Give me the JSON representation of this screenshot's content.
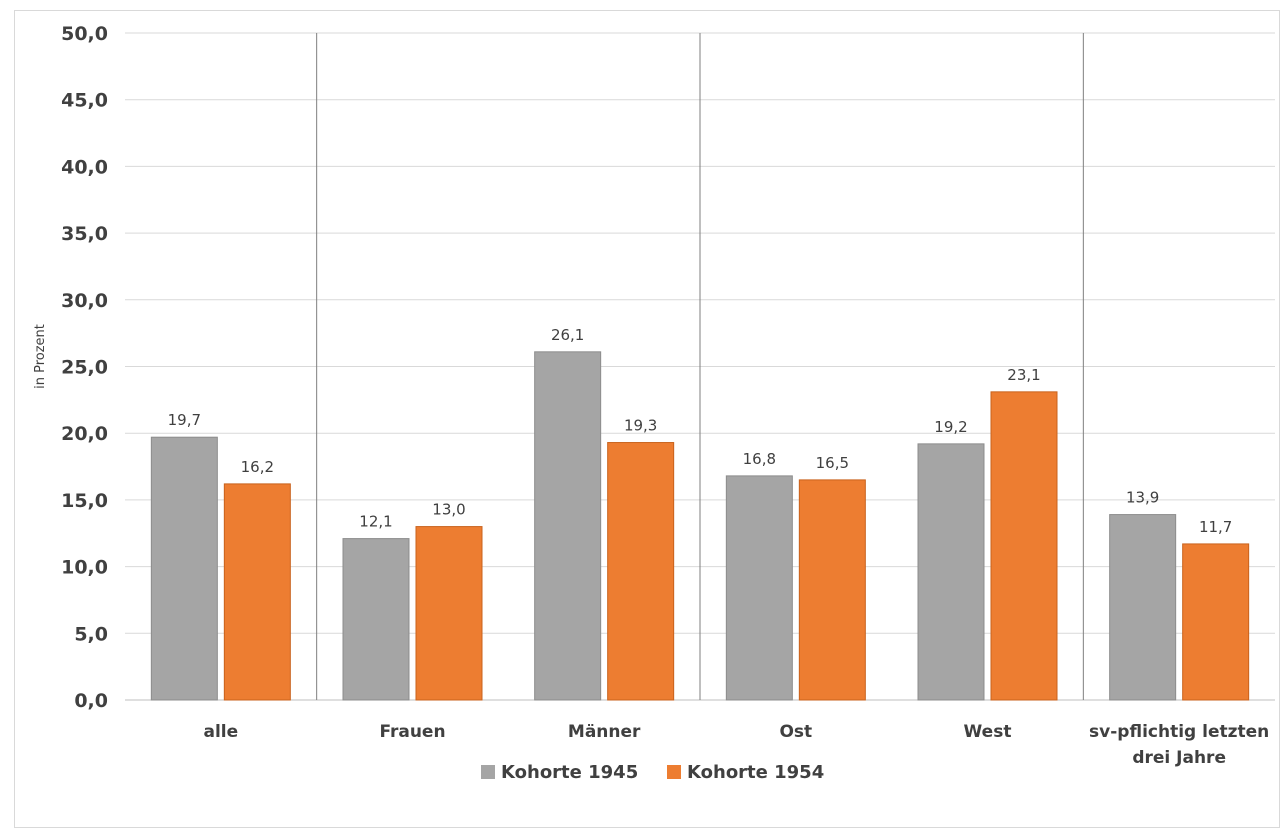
{
  "chart_data": {
    "type": "bar",
    "title": "",
    "xlabel": "",
    "ylabel": "in Prozent",
    "ylim": [
      0,
      50
    ],
    "ytick_step": 5,
    "ytick_labels": [
      "0,0",
      "5,0",
      "10,0",
      "15,0",
      "20,0",
      "25,0",
      "30,0",
      "35,0",
      "40,0",
      "45,0",
      "50,0"
    ],
    "categories": [
      "alle",
      "Frauen",
      "Männer",
      "Ost",
      "West",
      "sv-pflichtig letzten drei Jahre"
    ],
    "category_lines": [
      [
        "alle"
      ],
      [
        "Frauen"
      ],
      [
        "Männer"
      ],
      [
        "Ost"
      ],
      [
        "West"
      ],
      [
        "sv-pflichtig letzten",
        "drei Jahre"
      ]
    ],
    "group_separators_after": [
      0,
      2,
      4
    ],
    "grid": true,
    "legend_position": "bottom",
    "series": [
      {
        "name": "Kohorte 1945",
        "color": "#a5a5a5",
        "values": [
          19.7,
          12.1,
          26.1,
          16.8,
          19.2,
          13.9
        ],
        "labels": [
          "19,7",
          "12,1",
          "26,1",
          "16,8",
          "19,2",
          "13,9"
        ]
      },
      {
        "name": "Kohorte 1954",
        "color": "#ed7d31",
        "values": [
          16.2,
          13.0,
          19.3,
          16.5,
          23.1,
          11.7
        ],
        "labels": [
          "16,2",
          "13,0",
          "19,3",
          "16,5",
          "23,1",
          "11,7"
        ]
      }
    ]
  }
}
